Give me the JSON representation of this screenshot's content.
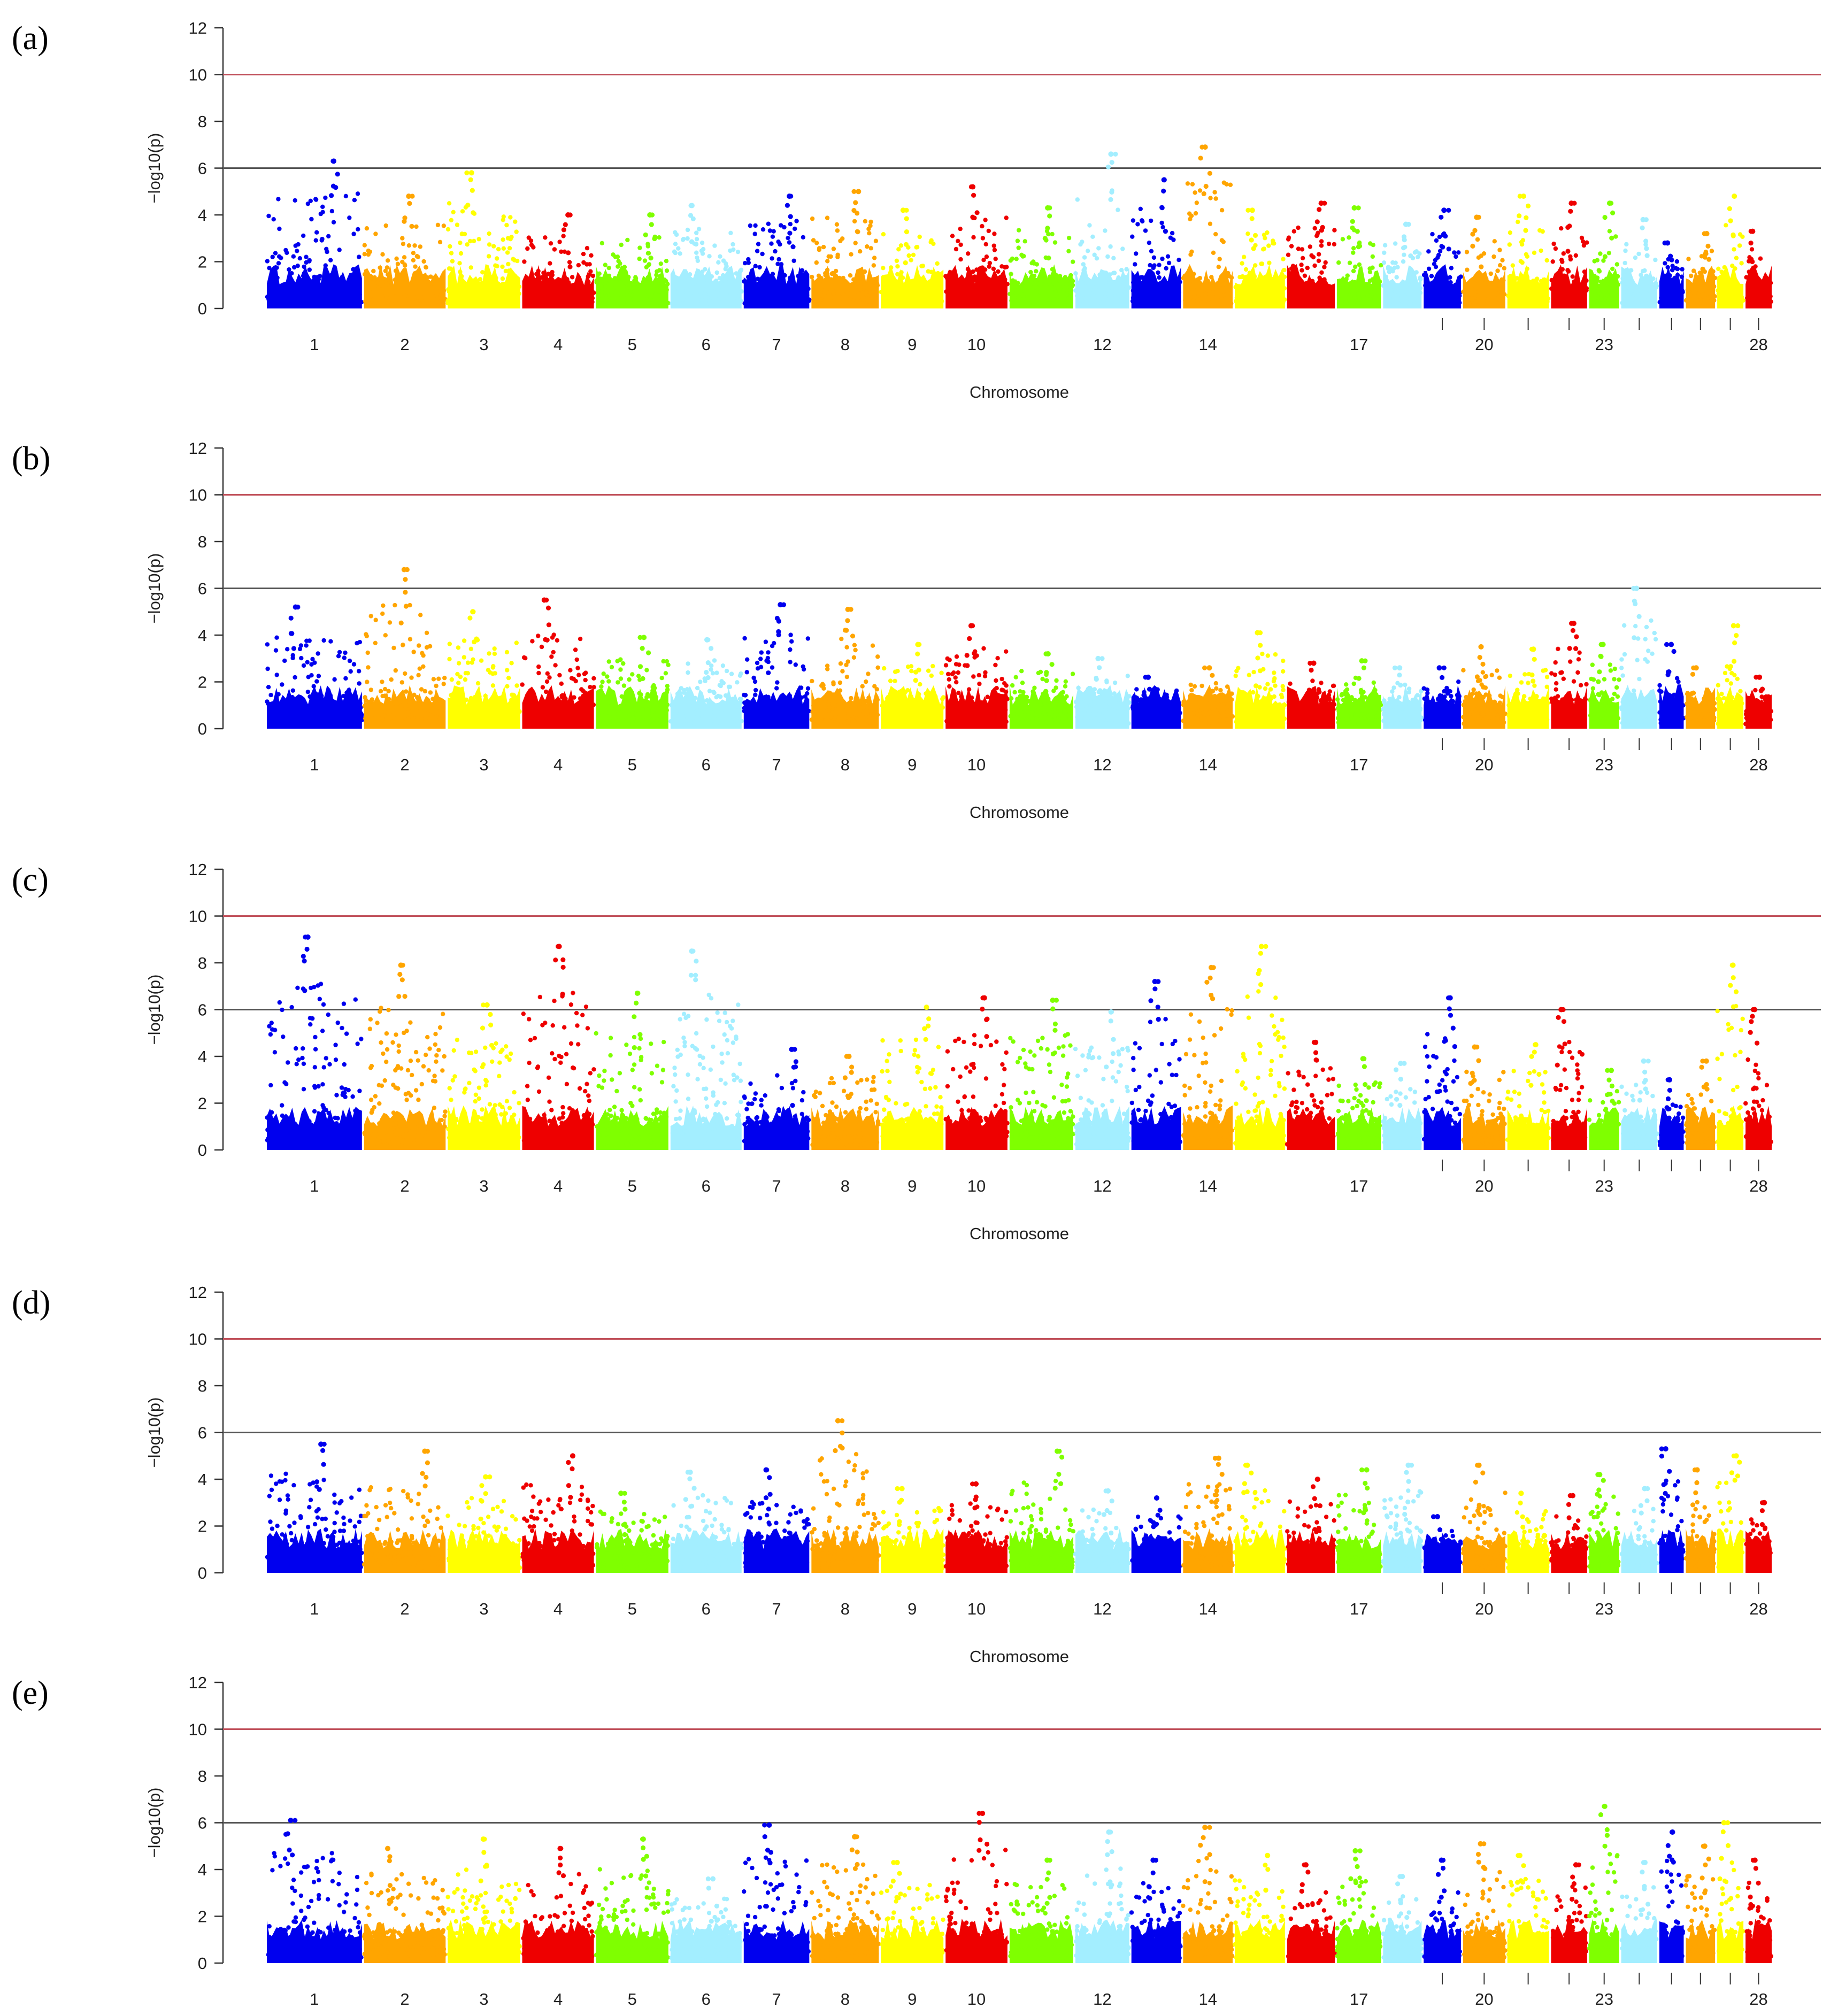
{
  "figure": {
    "panels": [
      {
        "label": "(a)",
        "xlabel": "Chromosome",
        "ylabel": "−log10(p)",
        "ylim": [
          0,
          12
        ],
        "yticks": [
          "0",
          "2",
          "4",
          "6",
          "8",
          "10",
          "12"
        ]
      },
      {
        "label": "(b)",
        "xlabel": "Chromosome",
        "ylabel": "−log10(p)",
        "ylim": [
          0,
          12
        ],
        "yticks": [
          "0",
          "2",
          "4",
          "6",
          "8",
          "10",
          "12"
        ]
      },
      {
        "label": "(c)",
        "xlabel": "Chromosome",
        "ylabel": "−log10(p)",
        "ylim": [
          0,
          12
        ],
        "yticks": [
          "0",
          "2",
          "4",
          "6",
          "8",
          "10",
          "12"
        ]
      },
      {
        "label": "(d)",
        "xlabel": "Chromosome",
        "ylabel": "−log10(p)",
        "ylim": [
          0,
          12
        ],
        "yticks": [
          "0",
          "2",
          "4",
          "6",
          "8",
          "10",
          "12"
        ]
      },
      {
        "label": "(e)",
        "xlabel": "Chromosome",
        "ylabel": "−log10(p)",
        "ylim": [
          0,
          12
        ],
        "yticks": [
          "0",
          "2",
          "4",
          "6",
          "8",
          "10",
          "12"
        ]
      }
    ],
    "chromosome_tick_labels": [
      "1",
      "2",
      "3",
      "4",
      "5",
      "6",
      "7",
      "8",
      "9",
      "10",
      "12",
      "14",
      "17",
      "20",
      "23",
      "28"
    ]
  },
  "chart_data": [
    {
      "type": "scatter",
      "subtype": "manhattan",
      "panel": "(a)",
      "title": "",
      "xlabel": "Chromosome",
      "ylabel": "−log10(p)",
      "ylim": [
        0,
        12
      ],
      "thresholds": [
        {
          "value": 10,
          "color": "#c0505a"
        },
        {
          "value": 6,
          "color": "#555555"
        }
      ],
      "chromosomes": [
        "1",
        "2",
        "3",
        "4",
        "5",
        "6",
        "7",
        "8",
        "9",
        "10",
        "11",
        "12",
        "13",
        "14",
        "15",
        "16",
        "17",
        "18",
        "19",
        "20",
        "21",
        "22",
        "23",
        "24",
        "25",
        "26",
        "27",
        "28"
      ],
      "color_cycle": [
        "#0000ee",
        "#ffa500",
        "#ffff00",
        "#ee0000",
        "#7fff00",
        "#a3eeff"
      ],
      "chromosome_max": [
        6.3,
        4.8,
        5.8,
        4.0,
        4.0,
        4.4,
        4.8,
        5.0,
        4.2,
        5.2,
        4.3,
        6.6,
        5.5,
        6.9,
        4.2,
        4.5,
        4.3,
        3.6,
        4.2,
        3.9,
        4.8,
        4.5,
        4.5,
        3.8,
        2.8,
        3.2,
        4.8,
        3.3
      ],
      "max_point": {
        "chromosome": "14",
        "value": 6.9
      }
    },
    {
      "type": "scatter",
      "subtype": "manhattan",
      "panel": "(b)",
      "title": "",
      "xlabel": "Chromosome",
      "ylabel": "−log10(p)",
      "ylim": [
        0,
        12
      ],
      "thresholds": [
        {
          "value": 10,
          "color": "#c0505a"
        },
        {
          "value": 6,
          "color": "#555555"
        }
      ],
      "chromosomes": [
        "1",
        "2",
        "3",
        "4",
        "5",
        "6",
        "7",
        "8",
        "9",
        "10",
        "11",
        "12",
        "13",
        "14",
        "15",
        "16",
        "17",
        "18",
        "19",
        "20",
        "21",
        "22",
        "23",
        "24",
        "25",
        "26",
        "27",
        "28"
      ],
      "color_cycle": [
        "#0000ee",
        "#ffa500",
        "#ffff00",
        "#ee0000",
        "#7fff00",
        "#a3eeff"
      ],
      "chromosome_max": [
        5.2,
        6.8,
        5.0,
        5.5,
        3.9,
        3.8,
        5.3,
        5.1,
        3.6,
        4.4,
        3.2,
        3.0,
        2.2,
        2.6,
        4.1,
        2.8,
        2.9,
        2.6,
        2.6,
        3.5,
        3.4,
        4.5,
        3.6,
        6.0,
        3.6,
        2.6,
        4.4,
        2.2
      ],
      "max_point": {
        "chromosome": "2",
        "value": 6.8
      }
    },
    {
      "type": "scatter",
      "subtype": "manhattan",
      "panel": "(c)",
      "title": "",
      "xlabel": "Chromosome",
      "ylabel": "−log10(p)",
      "ylim": [
        0,
        12
      ],
      "thresholds": [
        {
          "value": 10,
          "color": "#c0505a"
        },
        {
          "value": 6,
          "color": "#555555"
        }
      ],
      "chromosomes": [
        "1",
        "2",
        "3",
        "4",
        "5",
        "6",
        "7",
        "8",
        "9",
        "10",
        "11",
        "12",
        "13",
        "14",
        "15",
        "16",
        "17",
        "18",
        "19",
        "20",
        "21",
        "22",
        "23",
        "24",
        "25",
        "26",
        "27",
        "28"
      ],
      "color_cycle": [
        "#0000ee",
        "#ffa500",
        "#ffff00",
        "#ee0000",
        "#7fff00",
        "#a3eeff"
      ],
      "chromosome_max": [
        9.1,
        7.9,
        6.2,
        8.7,
        6.7,
        8.5,
        4.3,
        4.0,
        6.1,
        6.5,
        6.4,
        5.9,
        7.2,
        7.8,
        8.7,
        4.6,
        3.9,
        3.7,
        6.5,
        4.4,
        4.5,
        6.0,
        3.4,
        3.8,
        3.0,
        3.8,
        7.9,
        6.0
      ],
      "max_point": {
        "chromosome": "1",
        "value": 9.1
      }
    },
    {
      "type": "scatter",
      "subtype": "manhattan",
      "panel": "(d)",
      "title": "",
      "xlabel": "Chromosome",
      "ylabel": "−log10(p)",
      "ylim": [
        0,
        12
      ],
      "thresholds": [
        {
          "value": 10,
          "color": "#c0505a"
        },
        {
          "value": 6,
          "color": "#555555"
        }
      ],
      "chromosomes": [
        "1",
        "2",
        "3",
        "4",
        "5",
        "6",
        "7",
        "8",
        "9",
        "10",
        "11",
        "12",
        "13",
        "14",
        "15",
        "16",
        "17",
        "18",
        "19",
        "20",
        "21",
        "22",
        "23",
        "24",
        "25",
        "26",
        "27",
        "28"
      ],
      "color_cycle": [
        "#0000ee",
        "#ffa500",
        "#ffff00",
        "#ee0000",
        "#7fff00",
        "#a3eeff"
      ],
      "chromosome_max": [
        5.5,
        5.2,
        4.1,
        5.0,
        3.4,
        4.3,
        4.4,
        6.5,
        3.6,
        3.8,
        5.2,
        3.5,
        3.2,
        4.9,
        4.6,
        4.0,
        4.4,
        4.6,
        2.4,
        4.6,
        3.4,
        3.3,
        4.2,
        3.6,
        5.3,
        4.4,
        5.0,
        3.0
      ],
      "max_point": {
        "chromosome": "8",
        "value": 6.5
      }
    },
    {
      "type": "scatter",
      "subtype": "manhattan",
      "panel": "(e)",
      "title": "",
      "xlabel": "Chromosome",
      "ylabel": "−log10(p)",
      "ylim": [
        0,
        12
      ],
      "thresholds": [
        {
          "value": 10,
          "color": "#c0505a"
        },
        {
          "value": 6,
          "color": "#555555"
        }
      ],
      "chromosomes": [
        "1",
        "2",
        "3",
        "4",
        "5",
        "6",
        "7",
        "8",
        "9",
        "10",
        "11",
        "12",
        "13",
        "14",
        "15",
        "16",
        "17",
        "18",
        "19",
        "20",
        "21",
        "22",
        "23",
        "24",
        "25",
        "26",
        "27",
        "28"
      ],
      "color_cycle": [
        "#0000ee",
        "#ffa500",
        "#ffff00",
        "#ee0000",
        "#7fff00",
        "#a3eeff"
      ],
      "chromosome_max": [
        6.1,
        4.9,
        5.3,
        4.9,
        5.3,
        3.6,
        5.9,
        5.4,
        4.3,
        6.4,
        4.4,
        5.6,
        4.4,
        5.8,
        4.6,
        4.2,
        4.8,
        3.7,
        4.4,
        5.1,
        4.6,
        4.2,
        6.7,
        4.3,
        5.6,
        5.0,
        6.0,
        4.4
      ],
      "max_point": {
        "chromosome": "23",
        "value": 6.7
      }
    }
  ]
}
